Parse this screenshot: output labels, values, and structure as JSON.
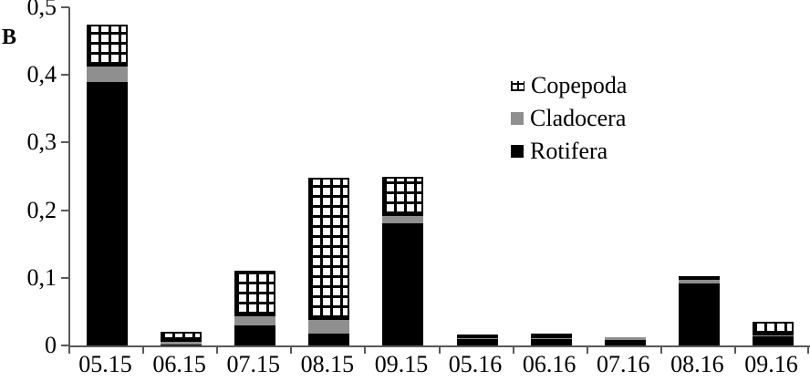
{
  "panel_label": "B",
  "colors": {
    "rotifera": "#000000",
    "cladocera": "#8f8f8f",
    "copepoda_hatch": "#000000",
    "axis": "#595959",
    "background": "#ffffff"
  },
  "legend": [
    {
      "label": "Copepoda",
      "swatch": "crosshatch-icon"
    },
    {
      "label": "Cladocera",
      "swatch": "gray-square-icon"
    },
    {
      "label": "Rotifera",
      "swatch": "black-square-icon"
    }
  ],
  "chart_data": {
    "type": "bar",
    "stacked": true,
    "title": "",
    "xlabel": "",
    "ylabel": "",
    "categories": [
      "05.15",
      "06.15",
      "07.15",
      "08.15",
      "09.15",
      "05.16",
      "06.16",
      "07.16",
      "08.16",
      "09.16"
    ],
    "series": [
      {
        "name": "Copepoda",
        "pattern": "crosshatch",
        "values": [
          0.063,
          0.014,
          0.067,
          0.21,
          0.058,
          0.001,
          0.006,
          0.0,
          0.004,
          0.02
        ]
      },
      {
        "name": "Cladocera",
        "pattern": "gray",
        "values": [
          0.022,
          0.004,
          0.013,
          0.02,
          0.012,
          0.002,
          0.001,
          0.004,
          0.005,
          0.002
        ]
      },
      {
        "name": "Rotifera",
        "pattern": "black",
        "values": [
          0.39,
          0.002,
          0.03,
          0.018,
          0.18,
          0.009,
          0.01,
          0.008,
          0.092,
          0.013
        ]
      }
    ],
    "stack_order_bottom_to_top": [
      "Rotifera",
      "Cladocera",
      "Copepoda"
    ],
    "totals": [
      0.475,
      0.02,
      0.11,
      0.248,
      0.25,
      0.012,
      0.017,
      0.012,
      0.101,
      0.035
    ],
    "ylim": [
      0,
      0.5
    ],
    "ytick_labels": [
      "0",
      "0,1",
      "0,2",
      "0,3",
      "0,4",
      "0,5"
    ],
    "ytick_values": [
      0,
      0.1,
      0.2,
      0.3,
      0.4,
      0.5
    ],
    "decimal_separator": ",",
    "grid": false,
    "legend_position": "inside-upper-right"
  }
}
